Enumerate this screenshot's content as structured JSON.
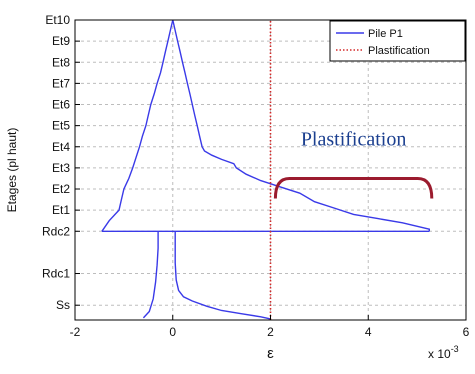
{
  "chart_data": {
    "type": "line",
    "xlabel": "ε",
    "ylabel": "Etages (pl haut)",
    "x_exponent_label": "x 10",
    "x_exponent_power": "-3",
    "xlim": [
      -2,
      6
    ],
    "x_ticks": [
      -2,
      0,
      2,
      4,
      6
    ],
    "x_tick_labels": [
      "-2",
      "0",
      "2",
      "4",
      "6"
    ],
    "y_ticks": [
      {
        "label": "Et10",
        "level": 10
      },
      {
        "label": "Et9",
        "level": 9
      },
      {
        "label": "Et8",
        "level": 8
      },
      {
        "label": "Et7",
        "level": 7
      },
      {
        "label": "Et6",
        "level": 6
      },
      {
        "label": "Et5",
        "level": 5
      },
      {
        "label": "Et4",
        "level": 4
      },
      {
        "label": "Et3",
        "level": 3
      },
      {
        "label": "Et2",
        "level": 2
      },
      {
        "label": "Et1",
        "level": 1
      },
      {
        "label": "Rdc2",
        "level": 0
      },
      {
        "label": "Rdc1",
        "level": -2
      },
      {
        "label": "Ss",
        "level": -3.5
      }
    ],
    "ylim": [
      -4.2,
      10
    ],
    "grid": true,
    "legend_position": "top-right",
    "annotation": {
      "text": "Plastification",
      "x_range": [
        2.1,
        5.3
      ],
      "level": 2.5,
      "color": "#9b1b2e"
    },
    "series": [
      {
        "name": "Pile P1",
        "color": "#3a3ae8",
        "style": "solid",
        "segments": [
          {
            "part": "upper-left-envelope",
            "points": [
              [
                0,
                10
              ],
              [
                -0.05,
                9.5
              ],
              [
                -0.1,
                9
              ],
              [
                -0.15,
                8.5
              ],
              [
                -0.2,
                8
              ],
              [
                -0.25,
                7.5
              ],
              [
                -0.32,
                7
              ],
              [
                -0.38,
                6.5
              ],
              [
                -0.45,
                6
              ],
              [
                -0.5,
                5.5
              ],
              [
                -0.55,
                5
              ],
              [
                -0.62,
                4.5
              ],
              [
                -0.68,
                4
              ],
              [
                -0.75,
                3.5
              ],
              [
                -0.82,
                3
              ],
              [
                -0.9,
                2.5
              ],
              [
                -1.0,
                2
              ],
              [
                -1.05,
                1.5
              ],
              [
                -1.1,
                1
              ],
              [
                -1.3,
                0.5
              ],
              [
                -1.45,
                0
              ]
            ]
          },
          {
            "part": "upper-right-envelope",
            "points": [
              [
                0,
                10
              ],
              [
                0.05,
                9.5
              ],
              [
                0.1,
                9
              ],
              [
                0.15,
                8.5
              ],
              [
                0.2,
                8
              ],
              [
                0.25,
                7.5
              ],
              [
                0.3,
                7
              ],
              [
                0.35,
                6.5
              ],
              [
                0.4,
                6
              ],
              [
                0.45,
                5.5
              ],
              [
                0.5,
                5
              ],
              [
                0.55,
                4.5
              ],
              [
                0.6,
                4
              ],
              [
                0.65,
                3.8
              ],
              [
                0.8,
                3.6
              ],
              [
                1.0,
                3.4
              ],
              [
                1.25,
                3.2
              ],
              [
                1.3,
                3
              ],
              [
                1.5,
                2.7
              ],
              [
                1.8,
                2.4
              ],
              [
                2.2,
                2.1
              ],
              [
                2.6,
                1.8
              ],
              [
                2.9,
                1.4
              ],
              [
                3.3,
                1.1
              ],
              [
                3.7,
                0.8
              ],
              [
                4.2,
                0.6
              ],
              [
                4.7,
                0.4
              ],
              [
                5.25,
                0.1
              ],
              [
                5.25,
                0
              ]
            ]
          },
          {
            "part": "rdc2-plateau",
            "points": [
              [
                -1.45,
                0
              ],
              [
                5.25,
                0
              ]
            ]
          },
          {
            "part": "lower-left-envelope",
            "points": [
              [
                -0.3,
                0
              ],
              [
                -0.3,
                -0.8
              ],
              [
                -0.32,
                -1.6
              ],
              [
                -0.35,
                -2.4
              ],
              [
                -0.4,
                -3.2
              ],
              [
                -0.48,
                -3.8
              ],
              [
                -0.6,
                -4.1
              ]
            ]
          },
          {
            "part": "lower-right-envelope",
            "points": [
              [
                0.05,
                0
              ],
              [
                0.05,
                -1.5
              ],
              [
                0.07,
                -2.3
              ],
              [
                0.12,
                -2.8
              ],
              [
                0.22,
                -3.1
              ],
              [
                0.4,
                -3.3
              ],
              [
                0.7,
                -3.55
              ],
              [
                1.0,
                -3.75
              ],
              [
                1.4,
                -3.9
              ],
              [
                1.8,
                -4.05
              ],
              [
                2.0,
                -4.15
              ]
            ]
          }
        ]
      },
      {
        "name": "Plastification",
        "color": "#d42a2a",
        "style": "dotted",
        "segments": [
          {
            "part": "limit-line",
            "points": [
              [
                2,
                -4.2
              ],
              [
                2,
                10
              ]
            ]
          }
        ]
      }
    ]
  }
}
